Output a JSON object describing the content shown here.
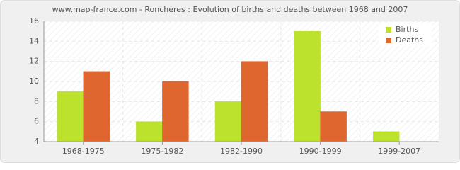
{
  "chart_data": {
    "type": "bar",
    "title": "www.map-france.com - Ronchères : Evolution of births and deaths between 1968 and 2007",
    "categories": [
      "1968-1975",
      "1975-1982",
      "1982-1990",
      "1990-1999",
      "1999-2007"
    ],
    "series": [
      {
        "name": "Births",
        "color": "#bde22d",
        "values": [
          9,
          6,
          8,
          15,
          5
        ]
      },
      {
        "name": "Deaths",
        "color": "#e0662f",
        "values": [
          11,
          10,
          12,
          7,
          4
        ]
      }
    ],
    "ylim": [
      4,
      16
    ],
    "yticks": [
      4,
      6,
      8,
      10,
      12,
      14,
      16
    ],
    "grid": true,
    "legend": "top-right"
  }
}
